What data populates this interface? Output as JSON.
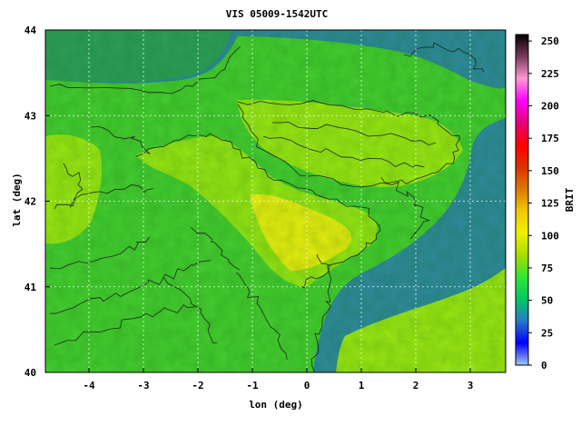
{
  "map": {
    "title": "VIS 05009-1542UTC",
    "x_axis_label": "lon (deg)",
    "y_axis_label": "lat (deg)",
    "x_ticks": [
      -4,
      -3,
      -2,
      -1,
      0,
      1,
      2,
      3
    ],
    "y_ticks": [
      40,
      41,
      42,
      43,
      44
    ],
    "lon_range": [
      -4.8,
      3.65
    ],
    "lat_range": [
      40,
      44
    ],
    "grid": "on"
  },
  "colorbar": {
    "label": "BRIT",
    "ticks": [
      0,
      25,
      50,
      75,
      100,
      125,
      150,
      175,
      200,
      225,
      250
    ],
    "range": [
      0,
      255
    ],
    "colors": [
      "#a0c8f0",
      "#0000ff",
      "#2878c8",
      "#00c864",
      "#32e632",
      "#aadc00",
      "#f0f000",
      "#f0c800",
      "#dc7800",
      "#dc3200",
      "#ff0000",
      "#e60078",
      "#ff00ff",
      "#ff9ad2",
      "#7a3a5a",
      "#000000"
    ]
  },
  "field_colors": {
    "sea": "#2f8a9c",
    "low": "#2e9e5a",
    "land": "#45cc30",
    "bright": "#9be614",
    "brightest": "#e8ee10",
    "contour": "#1a2a1a"
  }
}
